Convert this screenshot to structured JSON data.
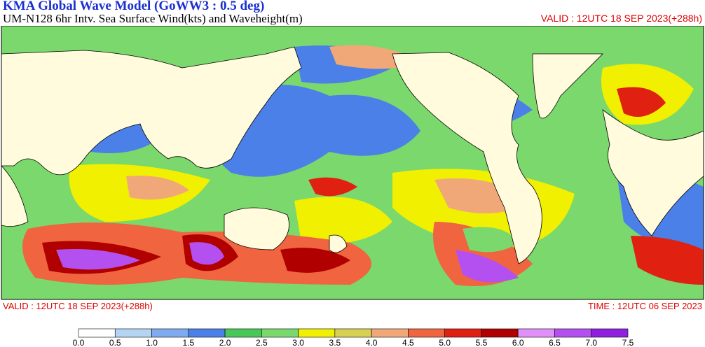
{
  "header": {
    "title": "KMA  Global Wave Model (GoWW3 : 0.5 deg)",
    "subtitle": "UM-N128  6hr Intv. Sea Surface Wind(kts) and Waveheight(m)",
    "valid_top": "VALID : 12UTC 18 SEP 2023(+288h)"
  },
  "footer": {
    "valid": "VALID : 12UTC 18 SEP 2023(+288h)",
    "time": "TIME : 12UTC 06 SEP 2023"
  },
  "legend": {
    "labels": [
      "0.0",
      "0.5",
      "1.0",
      "1.5",
      "2.0",
      "2.5",
      "3.0",
      "3.5",
      "4.0",
      "4.5",
      "5.0",
      "5.5",
      "6.0",
      "6.5",
      "7.0",
      "7.5"
    ],
    "colors": [
      "#ffffff",
      "#b4d4f4",
      "#7eaaf0",
      "#4a80e8",
      "#48c858",
      "#7ad86c",
      "#f0f000",
      "#d8d050",
      "#f0a878",
      "#f06440",
      "#e02010",
      "#b00000",
      "#e090f8",
      "#b450f0",
      "#9020e0"
    ]
  }
}
